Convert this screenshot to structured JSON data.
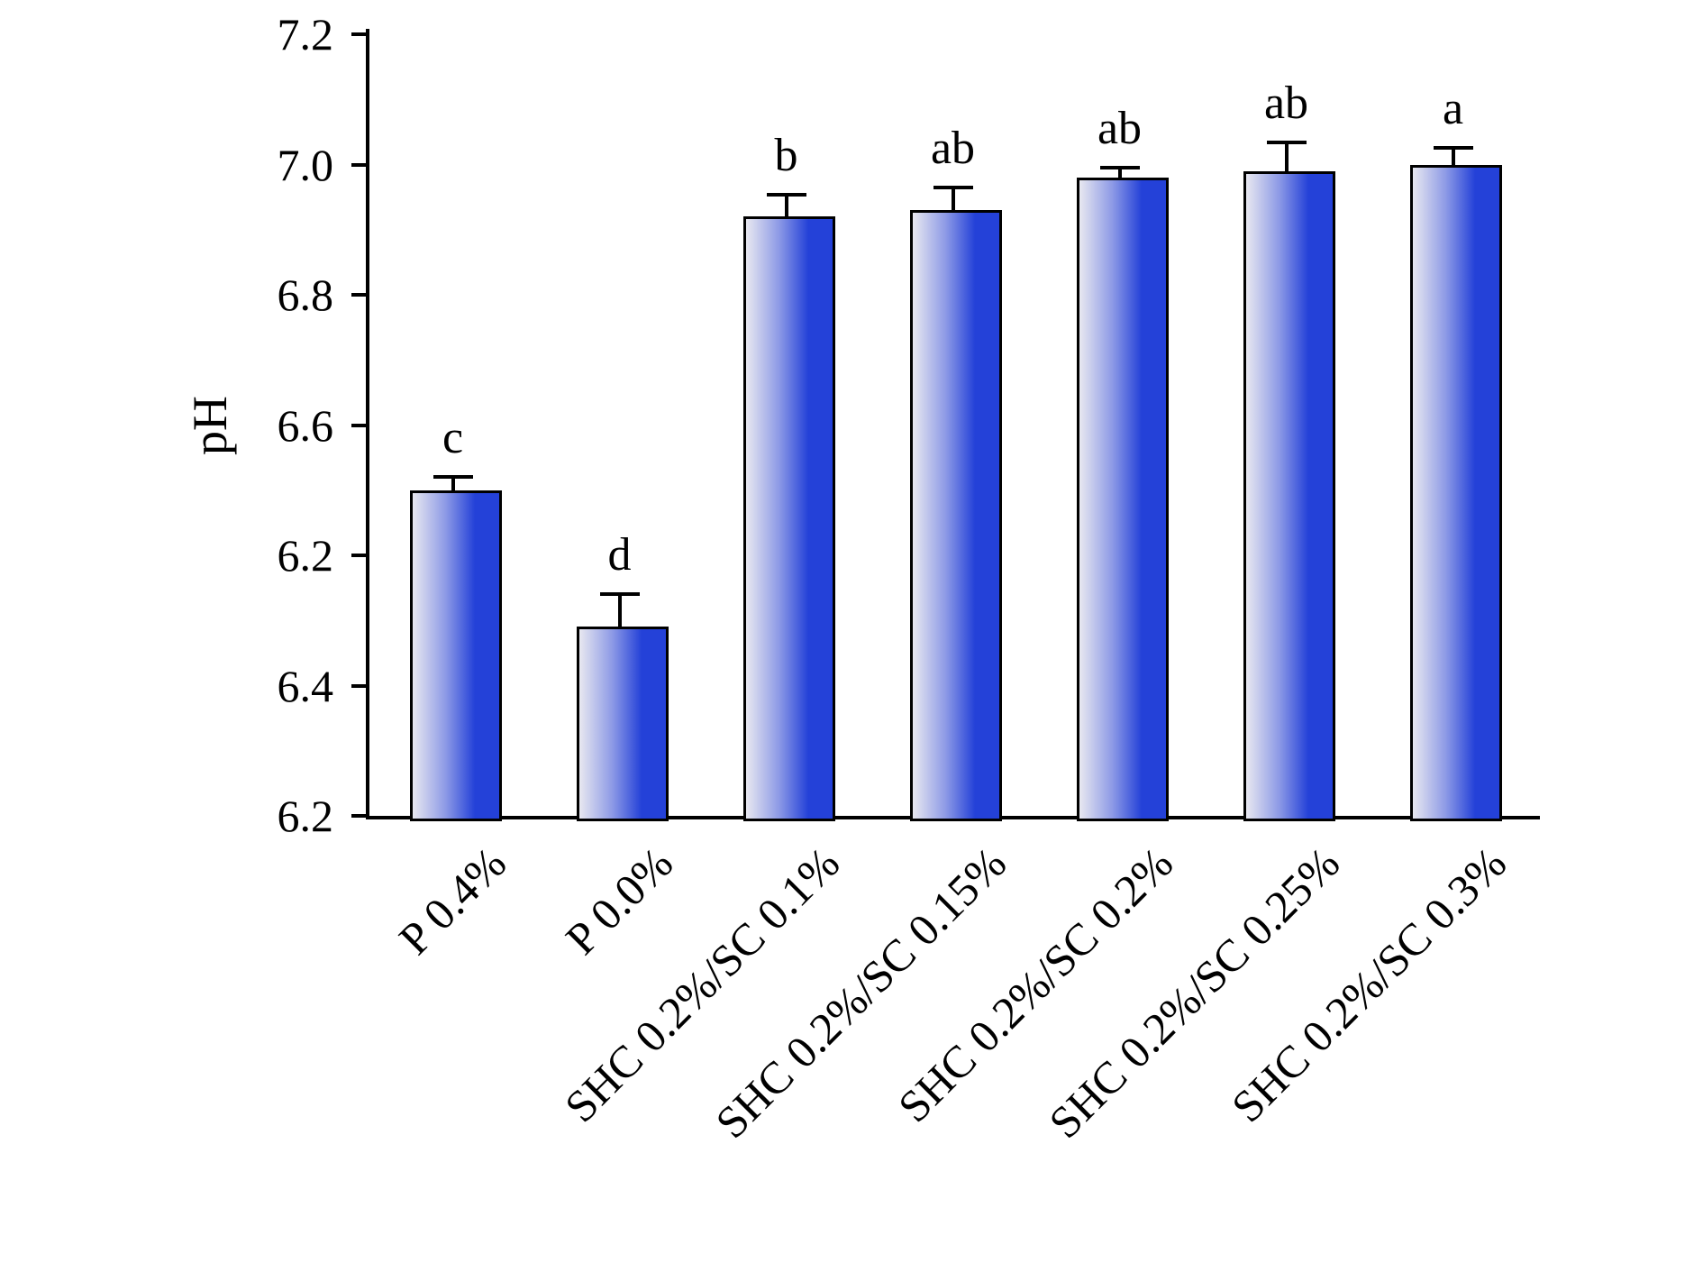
{
  "chart_data": {
    "type": "bar",
    "title": "",
    "xlabel": "",
    "ylabel": "pH",
    "categories": [
      "P 0.4%",
      "P 0.0%",
      "SHC 0.2%/SC 0.1%",
      "SHC 0.2%/SC 0.15%",
      "SHC 0.2%/SC 0.2%",
      "SHC 0.2%/SC 0.25%",
      "SHC 0.2%/SC 0.3%"
    ],
    "values": [
      6.5,
      6.29,
      6.92,
      6.93,
      6.98,
      6.99,
      7.0
    ],
    "errors": [
      0.02,
      0.05,
      0.033,
      0.035,
      0.015,
      0.044,
      0.025
    ],
    "significance_letters": [
      "c",
      "d",
      "b",
      "ab",
      "ab",
      "ab",
      "a"
    ],
    "y_axis": {
      "label": "pH",
      "tick_labels_top_to_bottom": [
        "7.2",
        "7.0",
        "6.8",
        "6.6",
        "6.2",
        "6.4",
        "6.2"
      ],
      "render_range": [
        6.0,
        7.2
      ]
    },
    "ylim": [
      6.2,
      7.2
    ],
    "grid": false,
    "legend": false,
    "colors": {
      "background": "#ffffff",
      "axis": "#000000",
      "bar_border": "#000000",
      "bar_gradient_left": "#e8e8f0",
      "bar_gradient_mid": "#8d9ae6",
      "bar_gradient_right": "#2441d8"
    }
  }
}
